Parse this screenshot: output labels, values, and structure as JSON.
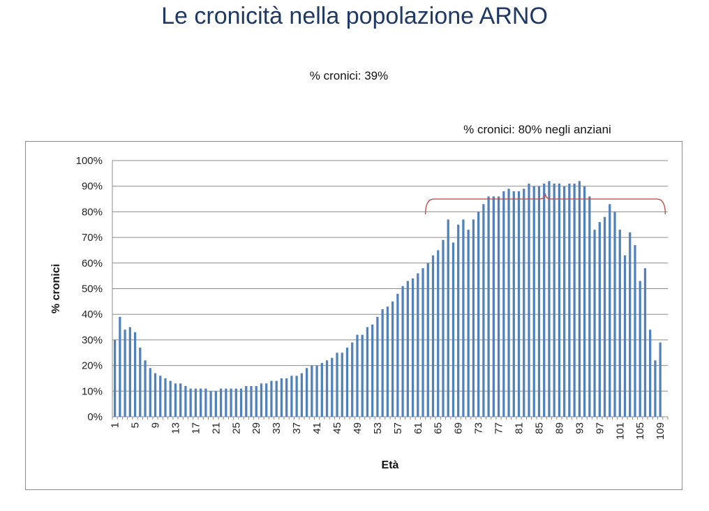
{
  "slide": {
    "title": "Le cronicità nella popolazione ARNO",
    "note_total": "% cronici: 39%",
    "note_elderly": "% cronici: 80% negli anziani"
  },
  "colors": {
    "bar": "#4f81bd",
    "grid": "#8c8c8c",
    "brace": "#c0504d",
    "title": "#1f3864"
  },
  "chart_data": {
    "type": "bar",
    "xlabel": "Età",
    "ylabel": "% cronici",
    "ylim": [
      0,
      100
    ],
    "y_ticks": [
      "0%",
      "10%",
      "20%",
      "30%",
      "40%",
      "50%",
      "60%",
      "70%",
      "80%",
      "90%",
      "100%"
    ],
    "x_tick_labels": [
      "1",
      "5",
      "9",
      "13",
      "17",
      "21",
      "25",
      "29",
      "33",
      "37",
      "41",
      "45",
      "49",
      "53",
      "57",
      "61",
      "65",
      "69",
      "73",
      "77",
      "81",
      "85",
      "89",
      "93",
      "97",
      "101",
      "105",
      "109"
    ],
    "grid": true,
    "x": [
      1,
      2,
      3,
      4,
      5,
      6,
      7,
      8,
      9,
      10,
      11,
      12,
      13,
      14,
      15,
      16,
      17,
      18,
      19,
      20,
      21,
      22,
      23,
      24,
      25,
      26,
      27,
      28,
      29,
      30,
      31,
      32,
      33,
      34,
      35,
      36,
      37,
      38,
      39,
      40,
      41,
      42,
      43,
      44,
      45,
      46,
      47,
      48,
      49,
      50,
      51,
      52,
      53,
      54,
      55,
      56,
      57,
      58,
      59,
      60,
      61,
      62,
      63,
      64,
      65,
      66,
      67,
      68,
      69,
      70,
      71,
      72,
      73,
      74,
      75,
      76,
      77,
      78,
      79,
      80,
      81,
      82,
      83,
      84,
      85,
      86,
      87,
      88,
      89,
      90,
      91,
      92,
      93,
      94,
      95,
      96,
      97,
      98,
      99,
      100,
      101,
      102,
      103,
      104,
      105,
      106,
      107,
      108,
      109
    ],
    "values": [
      30,
      39,
      34,
      35,
      33,
      27,
      22,
      19,
      17,
      16,
      15,
      14,
      13,
      13,
      12,
      11,
      11,
      11,
      11,
      10,
      10,
      11,
      11,
      11,
      11,
      11,
      12,
      12,
      12,
      13,
      13,
      14,
      14,
      15,
      15,
      16,
      16,
      17,
      19,
      20,
      20,
      21,
      22,
      23,
      25,
      25,
      27,
      29,
      32,
      32,
      35,
      36,
      39,
      42,
      43,
      45,
      48,
      51,
      53,
      54,
      56,
      58,
      60,
      63,
      65,
      69,
      77,
      68,
      75,
      77,
      73,
      77,
      80,
      83,
      86,
      86,
      86,
      88,
      89,
      88,
      88,
      89,
      91,
      90,
      90,
      91,
      92,
      91,
      91,
      90,
      91,
      91,
      92,
      90,
      86,
      73,
      76,
      78,
      83,
      80,
      73,
      63,
      72,
      67,
      53,
      58,
      34,
      22,
      29
    ],
    "annotation": {
      "type": "brace",
      "from": 63,
      "to": 110,
      "y": 85
    }
  }
}
